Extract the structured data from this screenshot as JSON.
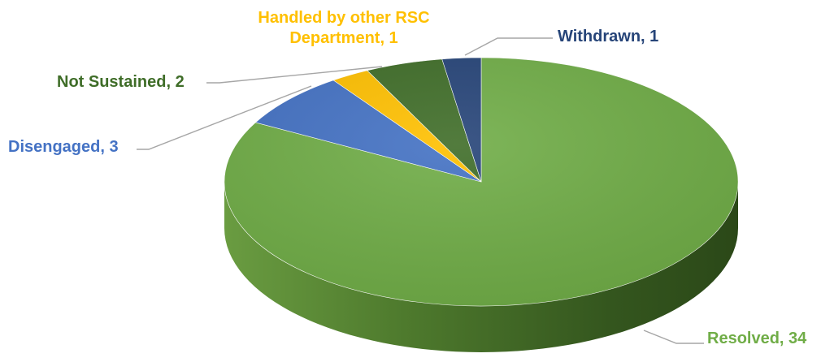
{
  "chart_data": {
    "type": "pie",
    "title": "",
    "labels": [
      "Resolved",
      "Disengaged",
      "Handled by other RSC Department",
      "Not Sustained",
      "Withdrawn"
    ],
    "values": [
      34,
      3,
      1,
      2,
      1
    ],
    "colors": [
      "#70AD47",
      "#4472C4",
      "#FFC000",
      "#3F6D28",
      "#264478"
    ],
    "data_labels": [
      {
        "name": "Resolved",
        "value": "34",
        "lines": [
          "Resolved, 34"
        ]
      },
      {
        "name": "Disengaged",
        "value": "3",
        "lines": [
          "Disengaged, 3"
        ]
      },
      {
        "name": "Handled by other RSC Department",
        "value": "1",
        "lines": [
          "Handled by other RSC",
          "Department, 1"
        ]
      },
      {
        "name": "Not Sustained",
        "value": "2",
        "lines": [
          "Not Sustained, 2"
        ]
      },
      {
        "name": "Withdrawn",
        "value": "1",
        "lines": [
          "Withdrawn, 1"
        ]
      }
    ],
    "legend": "none",
    "style": "3d-pie"
  }
}
